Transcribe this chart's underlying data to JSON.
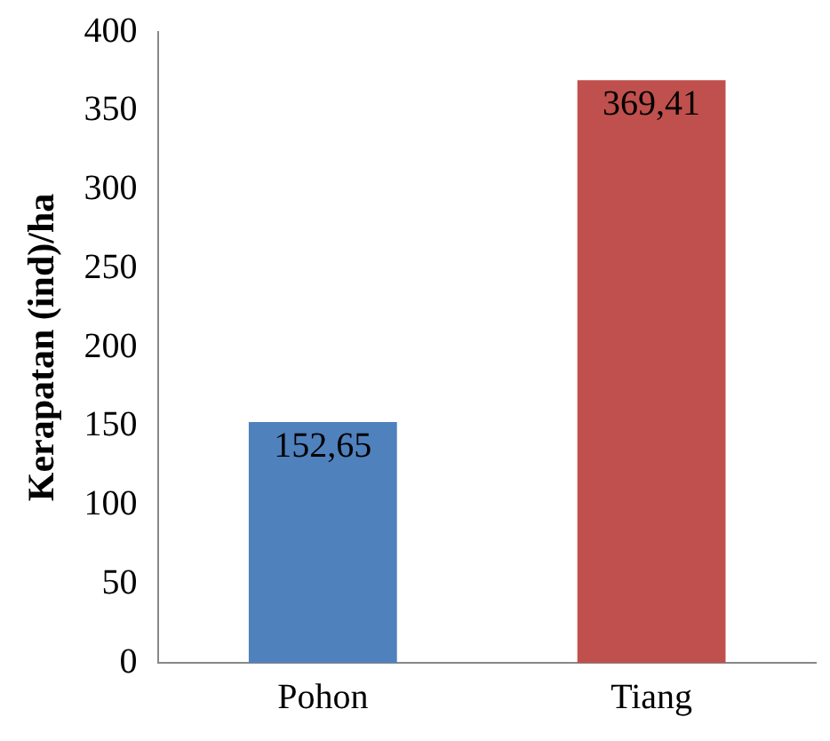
{
  "chart_data": {
    "type": "bar",
    "ylabel": "Kerapatan (ind)/ha",
    "categories": [
      "Pohon",
      "Tiang"
    ],
    "values": [
      152.65,
      369.41
    ],
    "colors": [
      "#4f81bd",
      "#c0504d"
    ],
    "value_labels": [
      "152,65",
      "369,41"
    ],
    "ylim": [
      0,
      400
    ],
    "yticks": [
      0,
      50,
      100,
      150,
      200,
      250,
      300,
      350,
      400
    ],
    "grid": false,
    "legend": false
  }
}
